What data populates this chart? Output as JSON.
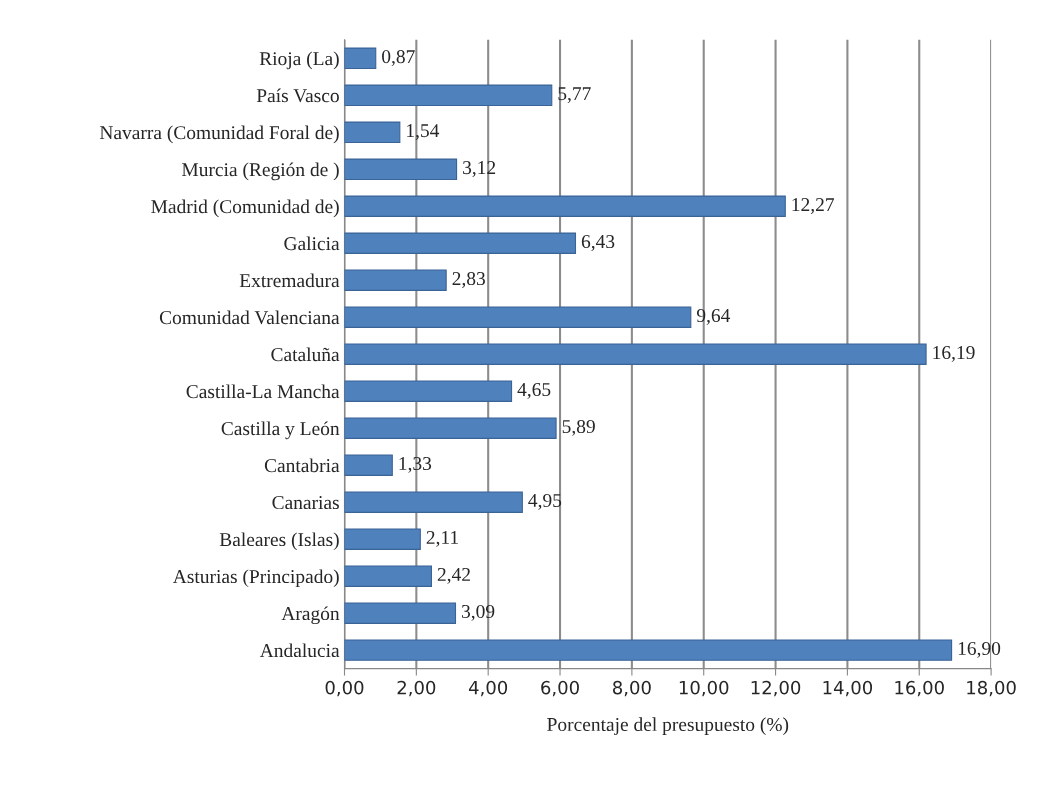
{
  "chart_data": {
    "type": "bar",
    "orientation": "horizontal",
    "xlabel": "Porcentaje del presupuesto (%)",
    "categories": [
      "Rioja (La)",
      "País Vasco",
      "Navarra (Comunidad Foral de)",
      "Murcia (Región de )",
      "Madrid (Comunidad de)",
      "Galicia",
      "Extremadura",
      "Comunidad Valenciana",
      "Cataluña",
      "Castilla-La Mancha",
      "Castilla y León",
      "Cantabria",
      "Canarias",
      "Baleares (Islas)",
      "Asturias (Principado)",
      "Aragón",
      "Andalucia"
    ],
    "values": [
      0.87,
      5.77,
      1.54,
      3.12,
      12.27,
      6.43,
      2.83,
      9.64,
      16.19,
      4.65,
      5.89,
      1.33,
      4.95,
      2.11,
      2.42,
      3.09,
      16.9
    ],
    "value_labels": [
      "0,87",
      "5,77",
      "1,54",
      "3,12",
      "12,27",
      "6,43",
      "2,83",
      "9,64",
      "16,19",
      "4,65",
      "5,89",
      "1,33",
      "4,95",
      "2,11",
      "2,42",
      "3,09",
      "16,90"
    ],
    "color": "#4f81bd",
    "xlim": [
      0,
      18
    ],
    "xticks": [
      {
        "value": 0,
        "label": "0,00"
      },
      {
        "value": 2,
        "label": "2,00"
      },
      {
        "value": 4,
        "label": "4,00"
      },
      {
        "value": 6,
        "label": "6,00"
      },
      {
        "value": 8,
        "label": "8,00"
      },
      {
        "value": 10,
        "label": "10,00"
      },
      {
        "value": 12,
        "label": "12,00"
      },
      {
        "value": 14,
        "label": "14,00"
      },
      {
        "value": 16,
        "label": "16,00"
      },
      {
        "value": 18,
        "label": "18,00"
      }
    ],
    "grid": "x",
    "legend": false
  }
}
